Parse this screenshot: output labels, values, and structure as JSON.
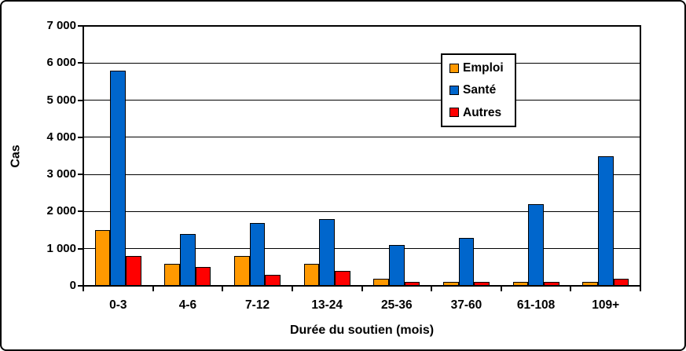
{
  "chart_data": {
    "type": "bar",
    "title": "",
    "xlabel": "Durée du soutien (mois)",
    "ylabel": "Cas",
    "categories": [
      "0-3",
      "4-6",
      "7-12",
      "13-24",
      "25-36",
      "37-60",
      "61-108",
      "109+"
    ],
    "series": [
      {
        "name": "Emploi",
        "color": "#FF9900",
        "values": [
          1500,
          600,
          800,
          600,
          200,
          100,
          100,
          100
        ]
      },
      {
        "name": "Santé",
        "color": "#0066CC",
        "values": [
          5800,
          1400,
          1700,
          1800,
          1100,
          1300,
          2200,
          3500
        ]
      },
      {
        "name": "Autres",
        "color": "#FF0000",
        "values": [
          800,
          500,
          300,
          400,
          100,
          100,
          100,
          200
        ]
      }
    ],
    "ylim": [
      0,
      7000
    ],
    "ytick_step": 1000,
    "ytick_labels": [
      "0",
      "1 000",
      "2 000",
      "3 000",
      "4 000",
      "5 000",
      "6 000",
      "7 000"
    ],
    "grid": true,
    "legend_position": "top-right-inside",
    "plot_background": "#FFFFFF",
    "axis_color": "#000000"
  }
}
